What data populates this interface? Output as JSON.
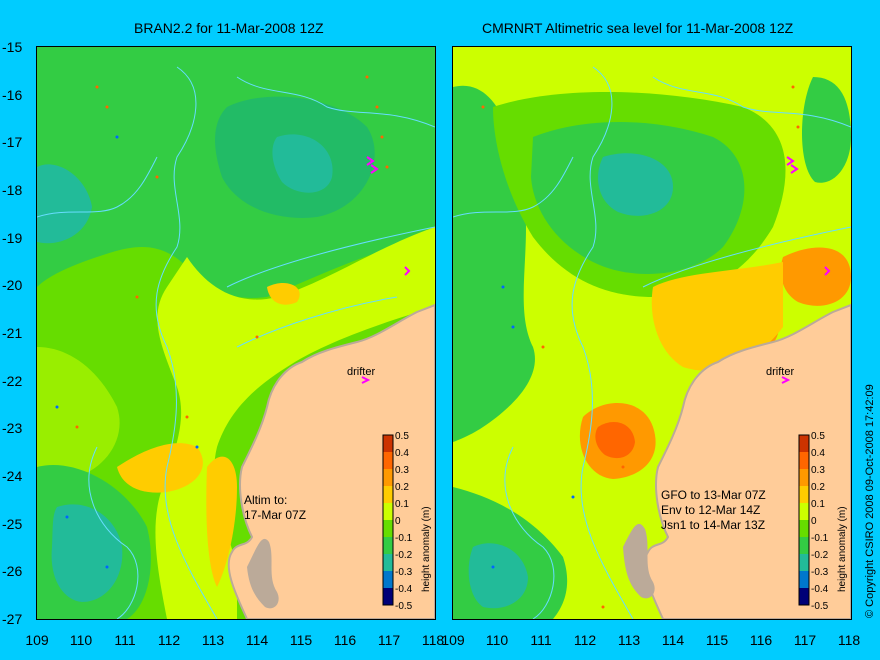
{
  "panels": [
    {
      "title": "BRAN2.2 for 11-Mar-2008 12Z",
      "drifter_label": "drifter",
      "note_lines": [
        "Altim to:",
        "17-Mar 07Z"
      ]
    },
    {
      "title": "CMRNRT Altimetric sea level  for 11-Mar-2008 12Z",
      "drifter_label": "drifter",
      "note_lines": [
        "GFO to 13-Mar 07Z",
        "Env to 12-Mar 14Z",
        "Jsn1 to 14-Mar 13Z"
      ]
    }
  ],
  "axes": {
    "y_ticks": [
      "-15",
      "-16",
      "-17",
      "-18",
      "-19",
      "-20",
      "-21",
      "-22",
      "-23",
      "-24",
      "-25",
      "-26",
      "-27"
    ],
    "x_ticks": [
      "109",
      "110",
      "111",
      "112",
      "113",
      "114",
      "115",
      "116",
      "117",
      "118"
    ]
  },
  "colorbar": {
    "label": "height anomaly (m)",
    "ticks": [
      "0.5",
      "0.4",
      "0.3",
      "0.2",
      "0.1",
      "0",
      "-0.1",
      "-0.2",
      "-0.3",
      "-0.4",
      "-0.5"
    ],
    "colors": {
      "0.5": "#cc3300",
      "0.4": "#ff6600",
      "0.3": "#ff9900",
      "0.2": "#ffcc00",
      "0.1": "#ccff00",
      "0": "#66dd00",
      "-0.1": "#33cc44",
      "-0.2": "#22bb99",
      "-0.3": "#0077cc",
      "-0.4": "#0033aa",
      "-0.5": "#000077"
    }
  },
  "copyright": "© Copyright CSIRO 2008   09-Oct-2008 17:42:09",
  "colors": {
    "background": "#00ccff",
    "land": "#ffcc99",
    "land_edge": "#bbaa99",
    "contour": "#66ddff",
    "drifter": "#ff00ff"
  }
}
